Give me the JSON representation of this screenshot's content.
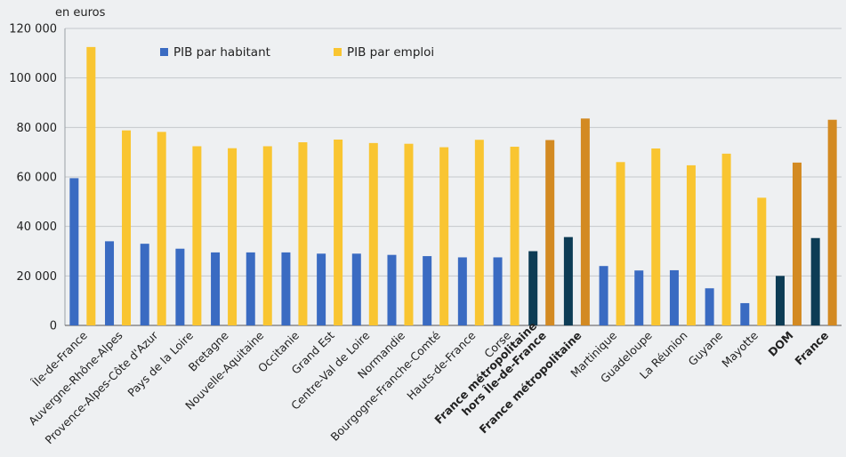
{
  "chart_data": {
    "type": "bar",
    "ylabel": "en euros",
    "ylim": [
      0,
      120000
    ],
    "yticks": [
      0,
      20000,
      40000,
      60000,
      80000,
      100000,
      120000
    ],
    "ytick_labels": [
      "0",
      "20 000",
      "40 000",
      "60 000",
      "80 000",
      "100 000",
      "120 000"
    ],
    "grid": true,
    "legend_position": "top-left",
    "categories": [
      "Île-de-France",
      "Auvergne-Rhône-Alpes",
      "Provence-Alpes-Côte d'Azur",
      "Pays de la Loire",
      "Bretagne",
      "Nouvelle-Aquitaine",
      "Occitanie",
      "Grand Est",
      "Centre-Val de Loire",
      "Normandie",
      "Bourgogne-Franche-Comté",
      "Hauts-de-France",
      "Corse",
      "France métropolitaine hors Île-de-France",
      "France métropolitaine",
      "Martinique",
      "Guadeloupe",
      "La Réunion",
      "Guyane",
      "Mayotte",
      "DOM",
      "France"
    ],
    "category_labels": [
      [
        "Île-de-France"
      ],
      [
        "Auvergne-Rhône-Alpes"
      ],
      [
        "Provence-Alpes-Côte d'Azur"
      ],
      [
        "Pays de la Loire"
      ],
      [
        "Bretagne"
      ],
      [
        "Nouvelle-Aquitaine"
      ],
      [
        "Occitanie"
      ],
      [
        "Grand Est"
      ],
      [
        "Centre-Val de Loire"
      ],
      [
        "Normandie"
      ],
      [
        "Bourgogne-Franche-Comté"
      ],
      [
        "Hauts-de-France"
      ],
      [
        "Corse"
      ],
      [
        "France métropolitaine",
        "hors Île-de-France"
      ],
      [
        "France métropolitaine"
      ],
      [
        "Martinique"
      ],
      [
        "Guadeloupe"
      ],
      [
        "La Réunion"
      ],
      [
        "Guyane"
      ],
      [
        "Mayotte"
      ],
      [
        "DOM"
      ],
      [
        "France"
      ]
    ],
    "highlight": [
      false,
      false,
      false,
      false,
      false,
      false,
      false,
      false,
      false,
      false,
      false,
      false,
      false,
      true,
      true,
      false,
      false,
      false,
      false,
      false,
      true,
      true
    ],
    "label_color_override": {
      "21": "#3a6fc4"
    },
    "series": [
      {
        "name": "PIB par habitant",
        "color": "#3a6bc2",
        "highlight_color": "#0d3c55",
        "values": [
          59500,
          34000,
          33000,
          31000,
          29500,
          29500,
          29500,
          29000,
          29000,
          28500,
          28000,
          27500,
          27500,
          30000,
          35700,
          24000,
          22200,
          22300,
          15000,
          9000,
          20000,
          35300
        ]
      },
      {
        "name": "PIB par emploi",
        "color": "#f9c531",
        "highlight_color": "#d38a22",
        "values": [
          112500,
          78800,
          78200,
          72400,
          71600,
          72400,
          74000,
          75100,
          73700,
          73400,
          72000,
          75000,
          72200,
          74900,
          83600,
          66000,
          71500,
          64700,
          69400,
          51600,
          65800,
          83100
        ]
      }
    ]
  }
}
